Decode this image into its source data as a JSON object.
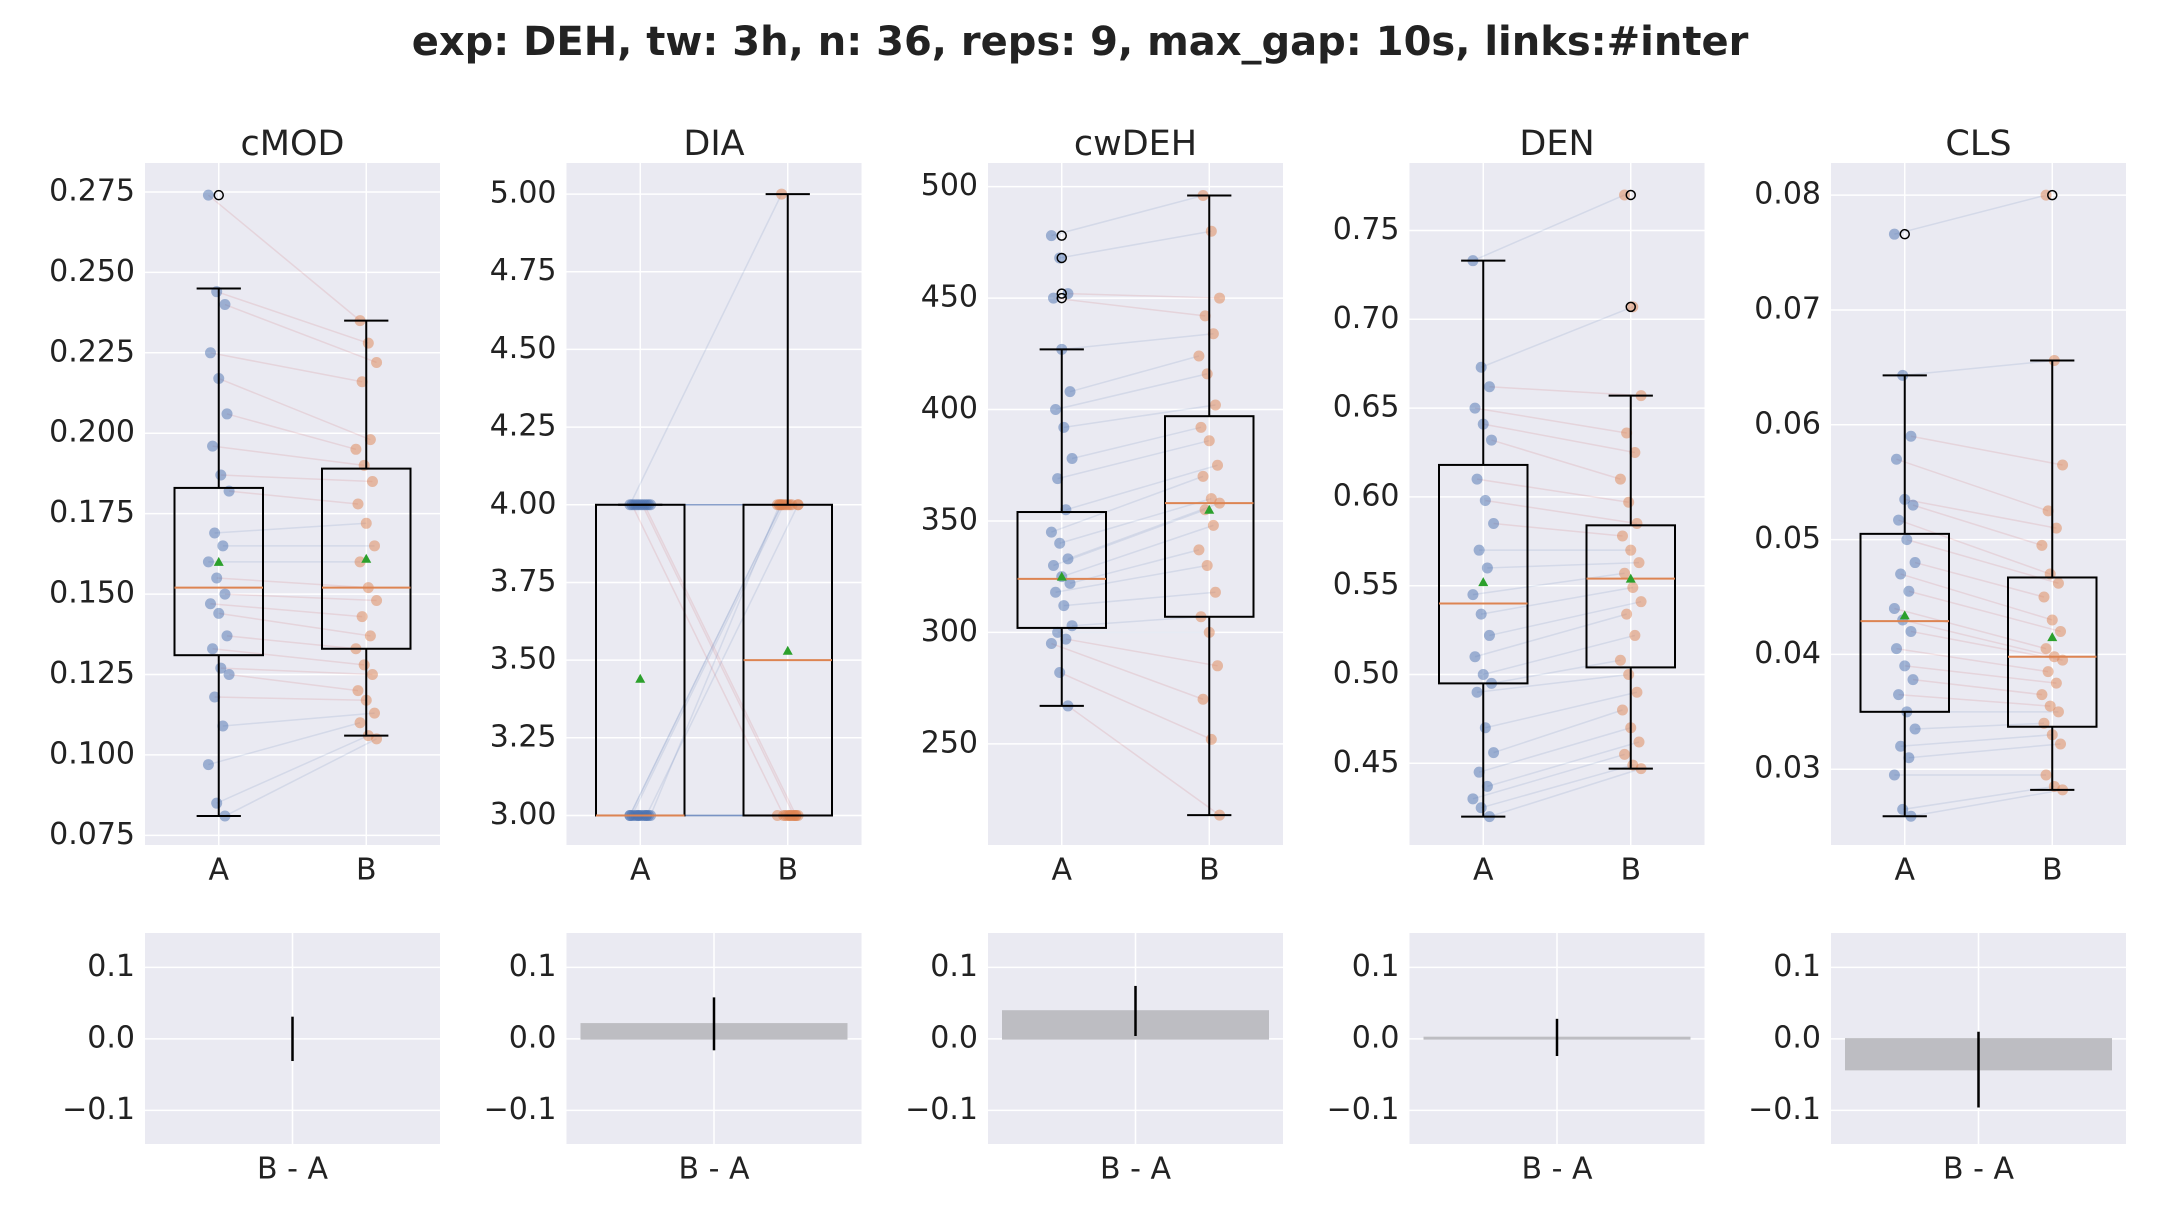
{
  "title": "exp: DEH, tw: 3h, n: 36, reps: 9, max_gap: 10s, links:#inter",
  "chart_data": [
    {
      "type": "box",
      "title": "cMOD",
      "categories": [
        "A",
        "B"
      ],
      "colors": [
        "#4c72b0",
        "#dd8452"
      ],
      "ylim": [
        0.072,
        0.284
      ],
      "yticks": [
        0.075,
        {
          "value": 0.1,
          "label": "0.100"
        },
        0.125,
        {
          "value": 0.15,
          "label": "0.150"
        },
        0.175,
        {
          "value": 0.2,
          "label": "0.200"
        },
        0.225,
        {
          "value": 0.25,
          "label": "0.250"
        },
        0.275
      ],
      "boxes": [
        {
          "whislo": 0.081,
          "q1": 0.131,
          "med": 0.152,
          "q3": 0.183,
          "whishi": 0.245,
          "mean": 0.16,
          "fliers": [
            0.274
          ]
        },
        {
          "whislo": 0.106,
          "q1": 0.133,
          "med": 0.152,
          "q3": 0.189,
          "whishi": 0.235,
          "mean": 0.161,
          "fliers": []
        }
      ],
      "points": [
        [
          0.274,
          0.244,
          0.24,
          0.225,
          0.217,
          0.206,
          0.196,
          0.187,
          0.182,
          0.169,
          0.165,
          0.16,
          0.155,
          0.15,
          0.147,
          0.144,
          0.137,
          0.133,
          0.127,
          0.125,
          0.118,
          0.109,
          0.097,
          0.085,
          0.081
        ],
        [
          0.235,
          0.228,
          0.222,
          0.216,
          0.198,
          0.195,
          0.19,
          0.185,
          0.178,
          0.172,
          0.165,
          0.16,
          0.152,
          0.148,
          0.143,
          0.137,
          0.133,
          0.128,
          0.125,
          0.12,
          0.117,
          0.113,
          0.11,
          0.106,
          0.105
        ]
      ]
    },
    {
      "type": "box",
      "title": "DIA",
      "categories": [
        "A",
        "B"
      ],
      "colors": [
        "#4c72b0",
        "#dd8452"
      ],
      "ylim": [
        2.905,
        5.1
      ],
      "yticks": [
        {
          "value": 3,
          "label": "3.00"
        },
        3.25,
        {
          "value": 3.5,
          "label": "3.50"
        },
        3.75,
        {
          "value": 4,
          "label": "4.00"
        },
        4.25,
        {
          "value": 4.5,
          "label": "4.50"
        },
        4.75,
        {
          "value": 5,
          "label": "5.00"
        }
      ],
      "boxes": [
        {
          "whislo": 3,
          "q1": 3,
          "med": 3,
          "q3": 4,
          "whishi": 4,
          "mean": 3.44,
          "fliers": []
        },
        {
          "whislo": 3,
          "q1": 3,
          "med": 3.5,
          "q3": 4,
          "whishi": 5,
          "mean": 3.53,
          "fliers": []
        }
      ],
      "points": [
        [
          4,
          4,
          4,
          4,
          4,
          4,
          4,
          4,
          4,
          4,
          4,
          3,
          3,
          3,
          3,
          3,
          3,
          3,
          3,
          3,
          3,
          3,
          3,
          3,
          3
        ],
        [
          5,
          4,
          4,
          3,
          4,
          4,
          4,
          3,
          4,
          4,
          3,
          4,
          3,
          4,
          4,
          3,
          3,
          3,
          3,
          4,
          3,
          3,
          4,
          3,
          3
        ]
      ]
    },
    {
      "type": "box",
      "title": "cwDEH",
      "categories": [
        "A",
        "B"
      ],
      "colors": [
        "#4c72b0",
        "#dd8452"
      ],
      "ylim": [
        204.6,
        510.6
      ],
      "yticks": [
        250,
        300,
        350,
        400,
        450,
        500
      ],
      "boxes": [
        {
          "whislo": 267,
          "q1": 302,
          "med": 324,
          "q3": 354,
          "whishi": 427,
          "mean": 325,
          "fliers": [
            478,
            468,
            452,
            450
          ]
        },
        {
          "whislo": 218,
          "q1": 307,
          "med": 358,
          "q3": 397,
          "whishi": 496,
          "mean": 355,
          "fliers": []
        }
      ],
      "points": [
        [
          478,
          468,
          452,
          450,
          427,
          408,
          400,
          392,
          378,
          369,
          355,
          345,
          340,
          333,
          330,
          325,
          322,
          318,
          312,
          303,
          300,
          297,
          295,
          282,
          267
        ],
        [
          496,
          480,
          450,
          442,
          434,
          424,
          416,
          402,
          392,
          386,
          375,
          370,
          360,
          358,
          355,
          348,
          337,
          330,
          318,
          307,
          300,
          285,
          270,
          252,
          218
        ]
      ]
    },
    {
      "type": "box",
      "title": "DEN",
      "categories": [
        "A",
        "B"
      ],
      "colors": [
        "#4c72b0",
        "#dd8452"
      ],
      "ylim": [
        0.404,
        0.788
      ],
      "yticks": [
        0.45,
        {
          "value": 0.5,
          "label": "0.50"
        },
        0.55,
        {
          "value": 0.6,
          "label": "0.60"
        },
        0.65,
        {
          "value": 0.7,
          "label": "0.70"
        },
        0.75
      ],
      "boxes": [
        {
          "whislo": 0.42,
          "q1": 0.495,
          "med": 0.54,
          "q3": 0.618,
          "whishi": 0.733,
          "mean": 0.552,
          "fliers": []
        },
        {
          "whislo": 0.447,
          "q1": 0.504,
          "med": 0.554,
          "q3": 0.584,
          "whishi": 0.657,
          "mean": 0.554,
          "fliers": [
            0.77,
            0.707
          ]
        }
      ],
      "points": [
        [
          0.733,
          0.673,
          0.662,
          0.65,
          0.641,
          0.632,
          0.61,
          0.598,
          0.585,
          0.57,
          0.56,
          0.545,
          0.534,
          0.522,
          0.51,
          0.5,
          0.495,
          0.49,
          0.47,
          0.456,
          0.445,
          0.437,
          0.43,
          0.425,
          0.42
        ],
        [
          0.77,
          0.707,
          0.657,
          0.636,
          0.625,
          0.61,
          0.597,
          0.585,
          0.578,
          0.57,
          0.563,
          0.557,
          0.549,
          0.541,
          0.534,
          0.522,
          0.508,
          0.5,
          0.49,
          0.48,
          0.47,
          0.462,
          0.455,
          0.449,
          0.447
        ]
      ]
    },
    {
      "type": "box",
      "title": "CLS",
      "categories": [
        "A",
        "B"
      ],
      "colors": [
        "#4c72b0",
        "#dd8452"
      ],
      "ylim": [
        0.0234,
        0.0828
      ],
      "yticks": [
        0.03,
        0.04,
        0.05,
        0.06,
        0.07,
        0.08
      ],
      "boxes": [
        {
          "whislo": 0.0259,
          "q1": 0.035,
          "med": 0.0429,
          "q3": 0.0505,
          "whishi": 0.0643,
          "mean": 0.0434,
          "fliers": [
            0.0766
          ]
        },
        {
          "whislo": 0.0282,
          "q1": 0.0337,
          "med": 0.0398,
          "q3": 0.0467,
          "whishi": 0.0656,
          "mean": 0.0415,
          "fliers": [
            0.08
          ]
        }
      ],
      "points": [
        [
          0.0766,
          0.0643,
          0.059,
          0.057,
          0.0535,
          0.053,
          0.0517,
          0.05,
          0.048,
          0.047,
          0.0455,
          0.044,
          0.043,
          0.042,
          0.0405,
          0.039,
          0.0378,
          0.0365,
          0.035,
          0.0335,
          0.032,
          0.031,
          0.0295,
          0.0265,
          0.0259
        ],
        [
          0.08,
          0.0656,
          0.0565,
          0.0525,
          0.051,
          0.0495,
          0.047,
          0.0462,
          0.045,
          0.043,
          0.042,
          0.0405,
          0.0398,
          0.0395,
          0.0385,
          0.0375,
          0.0365,
          0.0355,
          0.035,
          0.034,
          0.033,
          0.0322,
          0.0295,
          0.0285,
          0.0282
        ]
      ]
    },
    {
      "type": "bar",
      "categories": [
        "B - A"
      ],
      "values": [
        0.0
      ],
      "errors": [
        0.031
      ],
      "color": "#bdbdc2",
      "ylim": [
        -0.147,
        0.148
      ],
      "yticks": [
        {
          "value": -0.1,
          "label": "−0.1"
        },
        {
          "value": 0,
          "label": "0.0"
        },
        0.1
      ]
    },
    {
      "type": "bar",
      "categories": [
        "B - A"
      ],
      "values": [
        0.021
      ],
      "errors": [
        0.037
      ],
      "color": "#bdbdc2",
      "ylim": [
        -0.147,
        0.148
      ],
      "yticks": [
        {
          "value": -0.1,
          "label": "−0.1"
        },
        {
          "value": 0,
          "label": "0.0"
        },
        0.1
      ]
    },
    {
      "type": "bar",
      "categories": [
        "B - A"
      ],
      "values": [
        0.039
      ],
      "errors": [
        0.035
      ],
      "color": "#bdbdc2",
      "ylim": [
        -0.147,
        0.148
      ],
      "yticks": [
        {
          "value": -0.1,
          "label": "−0.1"
        },
        {
          "value": 0,
          "label": "0.0"
        },
        0.1
      ]
    },
    {
      "type": "bar",
      "categories": [
        "B - A"
      ],
      "values": [
        0.002
      ],
      "errors": [
        0.026
      ],
      "color": "#bdbdc2",
      "ylim": [
        -0.147,
        0.148
      ],
      "yticks": [
        {
          "value": -0.1,
          "label": "−0.1"
        },
        {
          "value": 0,
          "label": "0.0"
        },
        0.1
      ]
    },
    {
      "type": "bar",
      "categories": [
        "B - A"
      ],
      "values": [
        -0.043
      ],
      "errors": [
        0.053
      ],
      "color": "#bdbdc2",
      "ylim": [
        -0.147,
        0.148
      ],
      "yticks": [
        {
          "value": -0.1,
          "label": "−0.1"
        },
        {
          "value": 0,
          "label": "0.0"
        },
        0.1
      ]
    }
  ]
}
